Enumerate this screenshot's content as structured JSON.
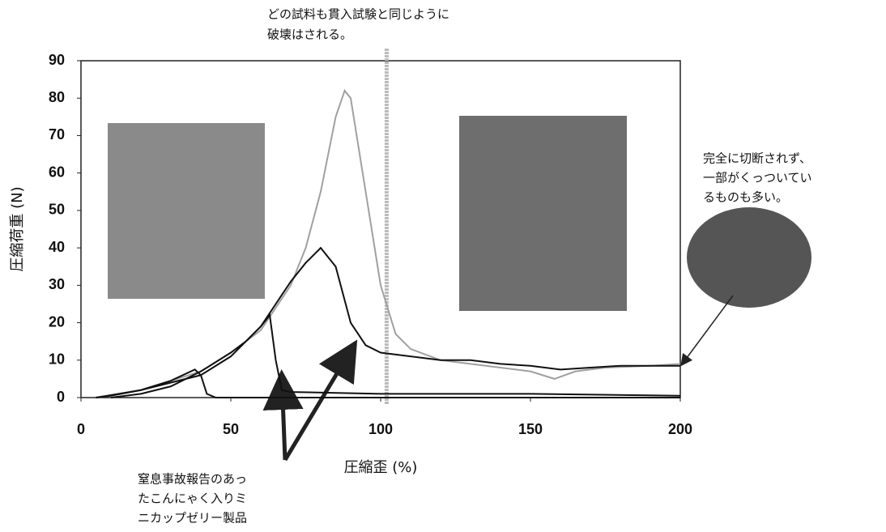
{
  "chart_data": {
    "type": "line",
    "xlabel": "圧縮歪 (%)",
    "ylabel": "圧縮荷重 (N)",
    "xlim": [
      0,
      200
    ],
    "xticks": [
      0,
      50,
      100,
      150,
      200
    ],
    "ylim": [
      0,
      90
    ],
    "yticks": [
      0,
      10,
      20,
      30,
      40,
      50,
      60,
      70,
      80,
      90
    ],
    "grid": false,
    "reference_x": 102,
    "annotations": {
      "top": [
        "どの試料も貫入試験と同じように",
        "破壊はされる。"
      ],
      "right": [
        "完全に切断されず、",
        "一部がくっついてい",
        "るものも多い。"
      ],
      "bottom": [
        "窒息事故報告のあっ",
        "たこんにゃく入りミ",
        "ニカップゼリー製品"
      ]
    },
    "series": [
      {
        "color": "#a0a0a0",
        "x": [
          5,
          10,
          20,
          30,
          40,
          50,
          60,
          70,
          75,
          80,
          85,
          88,
          90,
          95,
          100,
          105,
          110,
          120,
          130,
          140,
          150,
          158,
          165,
          175,
          190,
          200
        ],
        "values": [
          0,
          0.5,
          2,
          4.5,
          7,
          12,
          18,
          30,
          40,
          55,
          75,
          82,
          80,
          55,
          30,
          17,
          13,
          10,
          9,
          8,
          7,
          5,
          7,
          8,
          8.5,
          9
        ]
      },
      {
        "color": "#111111",
        "x": [
          5,
          10,
          20,
          30,
          40,
          50,
          60,
          70,
          75,
          80,
          85,
          90,
          95,
          100,
          110,
          120,
          130,
          140,
          150,
          160,
          170,
          180,
          190,
          200
        ],
        "values": [
          0,
          0.5,
          2,
          4,
          6,
          11,
          19,
          31,
          36,
          40,
          35,
          20,
          14,
          12,
          11,
          10,
          10,
          9,
          8.5,
          7.5,
          8,
          8.5,
          8.5,
          8.5
        ]
      },
      {
        "color": "#111111",
        "x": [
          10,
          20,
          30,
          40,
          50,
          55,
          60,
          63,
          65,
          67,
          70,
          100,
          150,
          200
        ],
        "values": [
          0,
          1,
          3,
          7,
          12,
          15,
          19,
          22,
          10,
          2,
          1.5,
          1,
          1,
          0.5
        ]
      },
      {
        "color": "#111111",
        "x": [
          5,
          20,
          30,
          38,
          40,
          42,
          45,
          100,
          200
        ],
        "values": [
          0,
          2,
          4.5,
          7.5,
          6,
          1,
          0,
          0,
          0
        ]
      }
    ]
  }
}
